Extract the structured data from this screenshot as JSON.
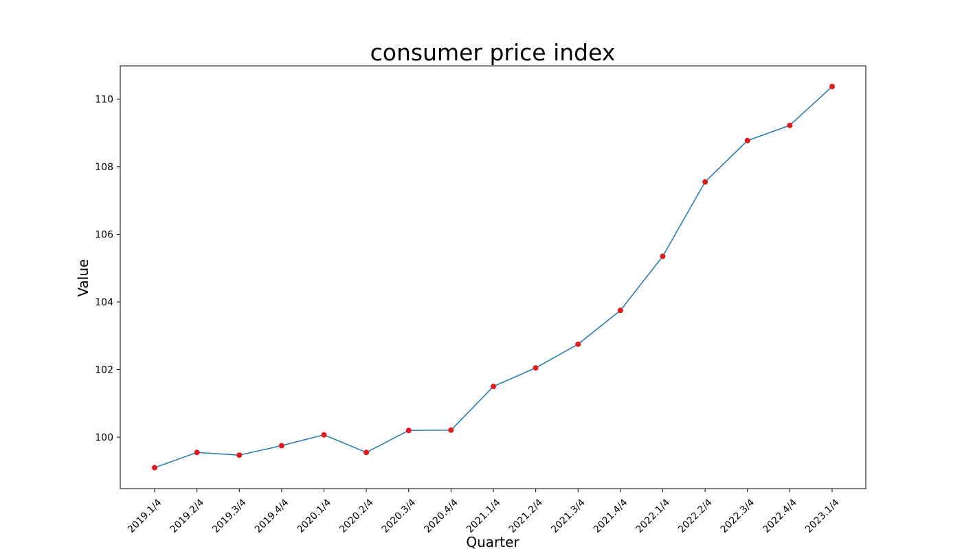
{
  "chart_data": {
    "type": "line",
    "title": "consumer price index",
    "xlabel": "Quarter",
    "ylabel": "Value",
    "categories": [
      "2019.1/4",
      "2019.2/4",
      "2019.3/4",
      "2019.4/4",
      "2020.1/4",
      "2020.2/4",
      "2020.3/4",
      "2020.4/4",
      "2021.1/4",
      "2021.2/4",
      "2021.3/4",
      "2021.4/4",
      "2022.1/4",
      "2022.2/4",
      "2022.3/4",
      "2022.4/4",
      "2023.1/4"
    ],
    "series": [
      {
        "values": [
          99.1,
          99.55,
          99.47,
          99.75,
          100.07,
          99.55,
          100.2,
          100.21,
          101.5,
          102.05,
          102.75,
          103.75,
          105.35,
          107.55,
          108.77,
          109.22,
          110.37
        ]
      }
    ],
    "yticks": [
      100,
      102,
      104,
      106,
      108,
      110
    ],
    "ytick_labels": [
      "100",
      "102",
      "104",
      "106",
      "108",
      "110"
    ],
    "ylim": [
      98.48,
      110.98
    ],
    "grid": false,
    "legend": false,
    "colors": {
      "line": "#1f77b4",
      "marker": "#e31a1c",
      "axes": "#000000"
    }
  }
}
